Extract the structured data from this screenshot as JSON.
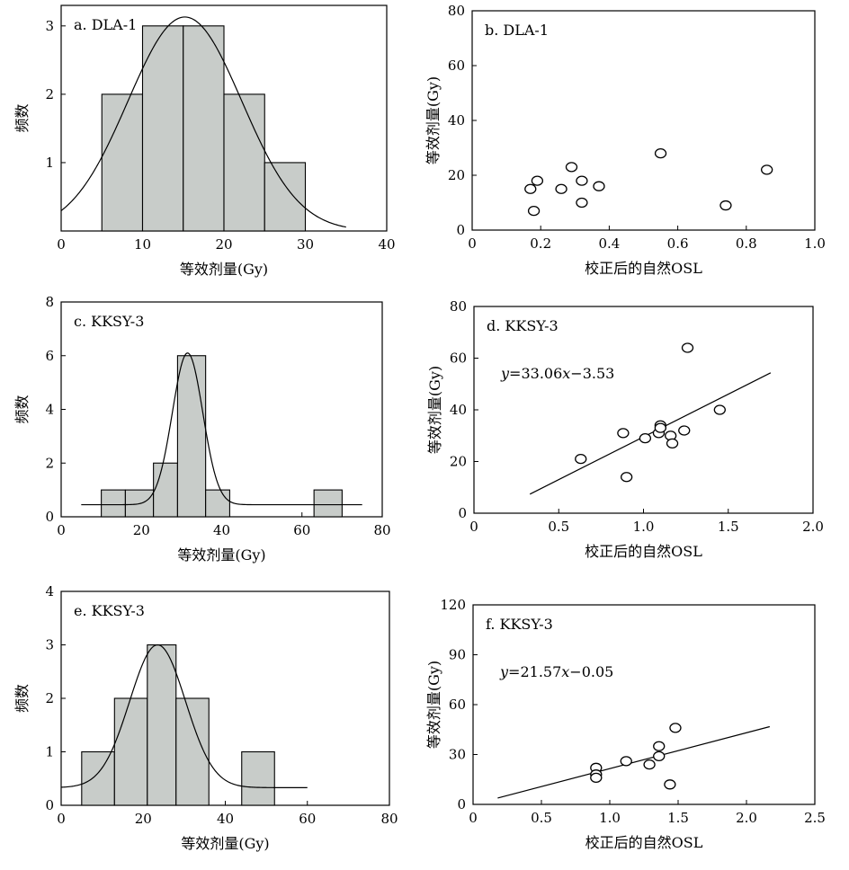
{
  "chart_data": [
    {
      "type": "histogram",
      "title": "a. DLA-1",
      "xlabel": "等效剂量(Gy)",
      "ylabel": "频数",
      "xlim": [
        0,
        40
      ],
      "ylim": [
        0,
        3.3
      ],
      "xticks": [
        0,
        10,
        20,
        30,
        40
      ],
      "yticks": [
        1,
        2,
        3
      ],
      "bins": [
        {
          "x0": 5,
          "x1": 10,
          "count": 2
        },
        {
          "x0": 10,
          "x1": 15,
          "count": 3
        },
        {
          "x0": 15,
          "x1": 20,
          "count": 3
        },
        {
          "x0": 20,
          "x1": 25,
          "count": 2
        },
        {
          "x0": 25,
          "x1": 30,
          "count": 1
        }
      ],
      "fit_curve": {
        "type": "normal",
        "mean": 15.2,
        "sd": 7.0,
        "peak": 3.13,
        "x_range": [
          0,
          35
        ]
      }
    },
    {
      "type": "scatter",
      "title": "b. DLA-1",
      "xlabel": "校正后的自然OSL",
      "ylabel": "等效剂量(Gy)",
      "xlim": [
        0,
        1.0
      ],
      "ylim": [
        0,
        80
      ],
      "xticks": [
        0,
        0.2,
        0.4,
        0.6,
        0.8,
        1.0
      ],
      "yticks": [
        0,
        20,
        40,
        60,
        80
      ],
      "points": [
        {
          "x": 0.17,
          "y": 15
        },
        {
          "x": 0.19,
          "y": 18
        },
        {
          "x": 0.18,
          "y": 7
        },
        {
          "x": 0.26,
          "y": 15
        },
        {
          "x": 0.29,
          "y": 23
        },
        {
          "x": 0.32,
          "y": 18
        },
        {
          "x": 0.32,
          "y": 10
        },
        {
          "x": 0.37,
          "y": 16
        },
        {
          "x": 0.55,
          "y": 28
        },
        {
          "x": 0.74,
          "y": 9
        },
        {
          "x": 0.86,
          "y": 22
        }
      ]
    },
    {
      "type": "histogram",
      "title": "c. KKSY-3",
      "xlabel": "等效剂量(Gy)",
      "ylabel": "频数",
      "xlim": [
        0,
        80
      ],
      "ylim": [
        0,
        8
      ],
      "xticks": [
        0,
        20,
        40,
        60,
        80
      ],
      "yticks": [
        0,
        2,
        4,
        6,
        8
      ],
      "bins": [
        {
          "x0": 10,
          "x1": 16,
          "count": 1
        },
        {
          "x0": 16,
          "x1": 23,
          "count": 1
        },
        {
          "x0": 23,
          "x1": 29,
          "count": 2
        },
        {
          "x0": 29,
          "x1": 36,
          "count": 6
        },
        {
          "x0": 36,
          "x1": 42,
          "count": 1
        },
        {
          "x0": 63,
          "x1": 70,
          "count": 1
        }
      ],
      "fit_curve": {
        "type": "normal",
        "mean": 31.5,
        "sd": 3.8,
        "peak": 6.1,
        "baseline": 0.45,
        "x_range": [
          5,
          75
        ]
      }
    },
    {
      "type": "scatter",
      "title": "d. KKSY-3",
      "xlabel": "校正后的自然OSL",
      "ylabel": "等效剂量(Gy)",
      "xlim": [
        0,
        2.0
      ],
      "ylim": [
        0,
        80
      ],
      "xticks": [
        0,
        0.5,
        1.0,
        1.5,
        2.0
      ],
      "yticks": [
        0,
        20,
        40,
        60,
        80
      ],
      "equation_prefix": "y",
      "equation_mid": "=33.06",
      "equation_var": "x",
      "equation_suffix": "−3.53",
      "fit_line": {
        "slope": 33.06,
        "intercept": -3.53,
        "x_range": [
          0.33,
          1.75
        ]
      },
      "points": [
        {
          "x": 0.63,
          "y": 21
        },
        {
          "x": 0.9,
          "y": 14
        },
        {
          "x": 0.88,
          "y": 31
        },
        {
          "x": 1.01,
          "y": 29
        },
        {
          "x": 1.09,
          "y": 31
        },
        {
          "x": 1.1,
          "y": 34
        },
        {
          "x": 1.1,
          "y": 33
        },
        {
          "x": 1.16,
          "y": 30
        },
        {
          "x": 1.17,
          "y": 27
        },
        {
          "x": 1.24,
          "y": 32
        },
        {
          "x": 1.26,
          "y": 64
        },
        {
          "x": 1.45,
          "y": 40
        }
      ]
    },
    {
      "type": "histogram",
      "title": "e. KKSY-3",
      "xlabel": "等效剂量(Gy)",
      "ylabel": "频数",
      "xlim": [
        0,
        80
      ],
      "ylim": [
        0,
        4
      ],
      "xticks": [
        0,
        20,
        40,
        60,
        80
      ],
      "yticks": [
        0,
        1,
        2,
        3,
        4
      ],
      "bins": [
        {
          "x0": 5,
          "x1": 13,
          "count": 1
        },
        {
          "x0": 13,
          "x1": 21,
          "count": 2
        },
        {
          "x0": 21,
          "x1": 28,
          "count": 3
        },
        {
          "x0": 28,
          "x1": 36,
          "count": 2
        },
        {
          "x0": 44,
          "x1": 52,
          "count": 1
        }
      ],
      "fit_curve": {
        "type": "normal",
        "mean": 23.5,
        "sd": 6.8,
        "peak": 3.0,
        "baseline": 0.33,
        "x_range": [
          0,
          60
        ]
      }
    },
    {
      "type": "scatter",
      "title": "f. KKSY-3",
      "xlabel": "校正后的自然OSL",
      "ylabel": "等效剂量(Gy)",
      "xlim": [
        0,
        2.5
      ],
      "ylim": [
        0,
        120
      ],
      "xticks": [
        0,
        0.5,
        1.0,
        1.5,
        2.0,
        2.5
      ],
      "yticks": [
        0,
        30,
        60,
        90,
        120
      ],
      "equation_prefix": "y",
      "equation_mid": "=21.57",
      "equation_var": "x",
      "equation_suffix": "−0.05",
      "fit_line": {
        "slope": 21.57,
        "intercept": -0.05,
        "x_range": [
          0.18,
          2.17
        ]
      },
      "points": [
        {
          "x": 0.9,
          "y": 22
        },
        {
          "x": 0.9,
          "y": 18
        },
        {
          "x": 0.9,
          "y": 16
        },
        {
          "x": 1.12,
          "y": 26
        },
        {
          "x": 1.29,
          "y": 24
        },
        {
          "x": 1.36,
          "y": 29
        },
        {
          "x": 1.36,
          "y": 35
        },
        {
          "x": 1.44,
          "y": 12
        },
        {
          "x": 1.48,
          "y": 46
        }
      ]
    }
  ]
}
